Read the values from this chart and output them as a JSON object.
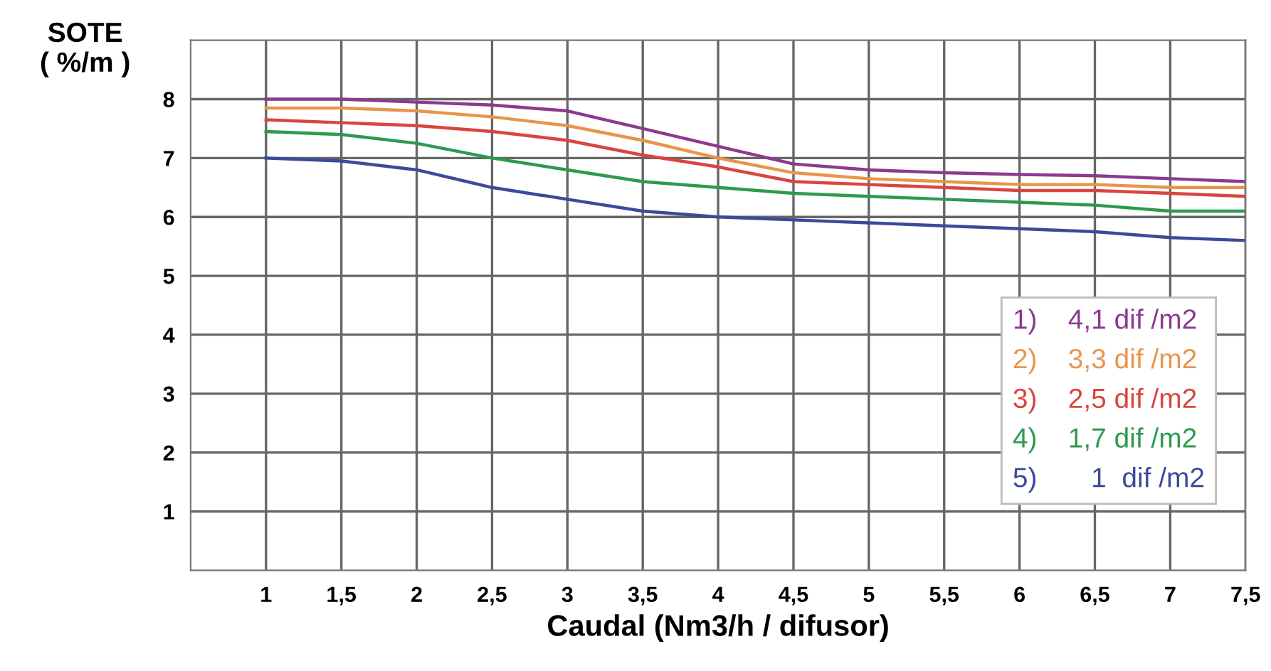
{
  "chart_data": {
    "type": "line",
    "ylabel": "SOTE\n( %/m )",
    "xlabel": "Caudal (Nm3/h / difusor)",
    "x": [
      1,
      1.5,
      2,
      2.5,
      3,
      3.5,
      4,
      4.5,
      5,
      5.5,
      6,
      6.5,
      7,
      7.5
    ],
    "series": [
      {
        "name": "1)    4,1 dif /m2",
        "color": "#8b3a8f",
        "values": [
          8.0,
          8.0,
          7.95,
          7.9,
          7.8,
          7.5,
          7.2,
          6.9,
          6.8,
          6.75,
          6.72,
          6.7,
          6.65,
          6.6
        ]
      },
      {
        "name": "2)    3,3 dif /m2",
        "color": "#e8954a",
        "values": [
          7.85,
          7.85,
          7.8,
          7.7,
          7.55,
          7.3,
          7.0,
          6.75,
          6.65,
          6.6,
          6.55,
          6.55,
          6.5,
          6.5
        ]
      },
      {
        "name": "3)    2,5 dif /m2",
        "color": "#d9453f",
        "values": [
          7.65,
          7.6,
          7.55,
          7.45,
          7.3,
          7.05,
          6.85,
          6.6,
          6.55,
          6.5,
          6.45,
          6.45,
          6.4,
          6.35
        ]
      },
      {
        "name": "4)    1,7 dif /m2",
        "color": "#2e9a4f",
        "values": [
          7.45,
          7.4,
          7.25,
          7.0,
          6.8,
          6.6,
          6.5,
          6.4,
          6.35,
          6.3,
          6.25,
          6.2,
          6.1,
          6.1
        ]
      },
      {
        "name": "5)       1  dif /m2",
        "color": "#3c4a9a",
        "values": [
          7.0,
          6.95,
          6.8,
          6.5,
          6.3,
          6.1,
          6.0,
          5.95,
          5.9,
          5.85,
          5.8,
          5.75,
          5.65,
          5.6
        ]
      }
    ],
    "xlim": [
      0.5,
      7.5
    ],
    "ylim": [
      0,
      9
    ],
    "xticks": [
      1,
      {
        "value": 1.5,
        "label": "1,5"
      },
      2,
      {
        "value": 2.5,
        "label": "2,5"
      },
      3,
      {
        "value": 3.5,
        "label": "3,5"
      },
      4,
      {
        "value": 4.5,
        "label": "4,5"
      },
      5,
      {
        "value": 5.5,
        "label": "5,5"
      },
      6,
      {
        "value": 6.5,
        "label": "6,5"
      },
      7,
      {
        "value": 7.5,
        "label": "7,5"
      }
    ],
    "yticks": [
      1,
      2,
      3,
      4,
      5,
      6,
      7,
      8
    ],
    "grid": true,
    "legend": "right",
    "marker": "none",
    "line_style": "solid"
  }
}
